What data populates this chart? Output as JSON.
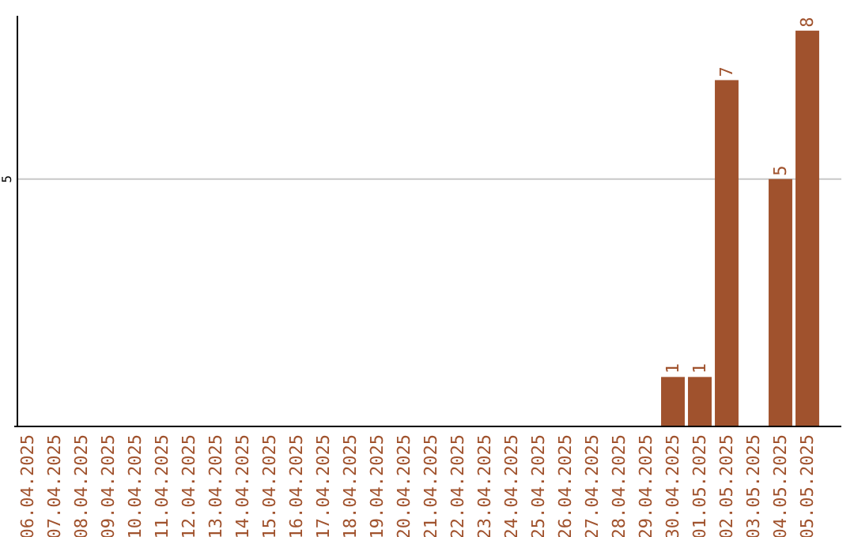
{
  "chart_data": {
    "type": "bar",
    "categories": [
      "06.04.2025",
      "07.04.2025",
      "08.04.2025",
      "09.04.2025",
      "10.04.2025",
      "11.04.2025",
      "12.04.2025",
      "13.04.2025",
      "14.04.2025",
      "15.04.2025",
      "16.04.2025",
      "17.04.2025",
      "18.04.2025",
      "19.04.2025",
      "20.04.2025",
      "21.04.2025",
      "22.04.2025",
      "23.04.2025",
      "24.04.2025",
      "25.04.2025",
      "26.04.2025",
      "27.04.2025",
      "28.04.2025",
      "29.04.2025",
      "30.04.2025",
      "01.05.2025",
      "02.05.2025",
      "03.05.2025",
      "04.05.2025",
      "05.05.2025"
    ],
    "values": [
      null,
      null,
      null,
      null,
      null,
      null,
      null,
      null,
      null,
      null,
      null,
      null,
      null,
      null,
      null,
      null,
      null,
      null,
      null,
      null,
      null,
      null,
      null,
      null,
      1,
      1,
      7,
      null,
      5,
      8
    ],
    "data_labels": true,
    "color": "#a0522d",
    "ylim": [
      0,
      8.3
    ],
    "ref_lines": [
      {
        "axis": "y",
        "value": 5,
        "label": "5",
        "color": "#c8c8c8"
      }
    ]
  }
}
